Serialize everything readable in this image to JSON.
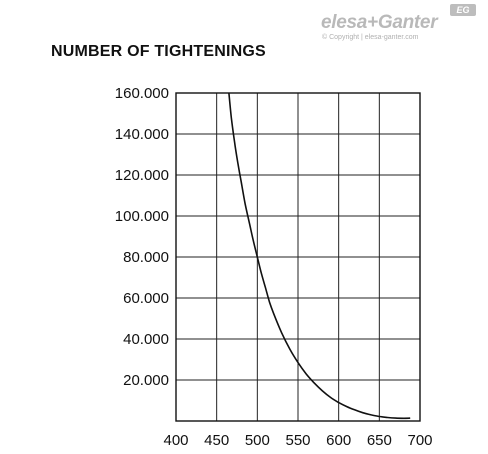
{
  "logo": {
    "brand": "elesa+Ganter",
    "badge": "EG",
    "copyright": "© Copyright | elesa-ganter.com"
  },
  "chart_data": {
    "type": "line",
    "title": "NUMBER OF TIGHTENINGS",
    "xlabel": "",
    "ylabel": "",
    "xlim": [
      400,
      700
    ],
    "ylim": [
      0,
      160000
    ],
    "x_ticks": [
      400,
      450,
      500,
      550,
      600,
      650,
      700
    ],
    "x_tick_labels": [
      "400",
      "450",
      "500",
      "550",
      "600",
      "650",
      "700"
    ],
    "y_ticks": [
      20000,
      40000,
      60000,
      80000,
      100000,
      120000,
      140000,
      160000
    ],
    "y_tick_labels": [
      "20.000",
      "40.000",
      "60.000",
      "80.000",
      "100.000",
      "120.000",
      "140.000",
      "160.000"
    ],
    "grid": true,
    "series": [
      {
        "color": "#111111",
        "x": [
          465,
          468,
          472,
          476,
          480,
          485,
          490,
          495,
          500,
          505,
          510,
          515,
          520,
          530,
          540,
          550,
          560,
          570,
          580,
          590,
          600,
          610,
          620,
          630,
          640,
          650,
          660,
          670,
          680,
          688
        ],
        "y": [
          160000,
          148000,
          136000,
          126000,
          117000,
          106000,
          97000,
          88000,
          80000,
          72000,
          65000,
          58000,
          52500,
          43000,
          35000,
          28500,
          23000,
          18500,
          14700,
          11500,
          9000,
          7000,
          5400,
          4000,
          3000,
          2200,
          1700,
          1400,
          1300,
          1400
        ]
      }
    ]
  }
}
